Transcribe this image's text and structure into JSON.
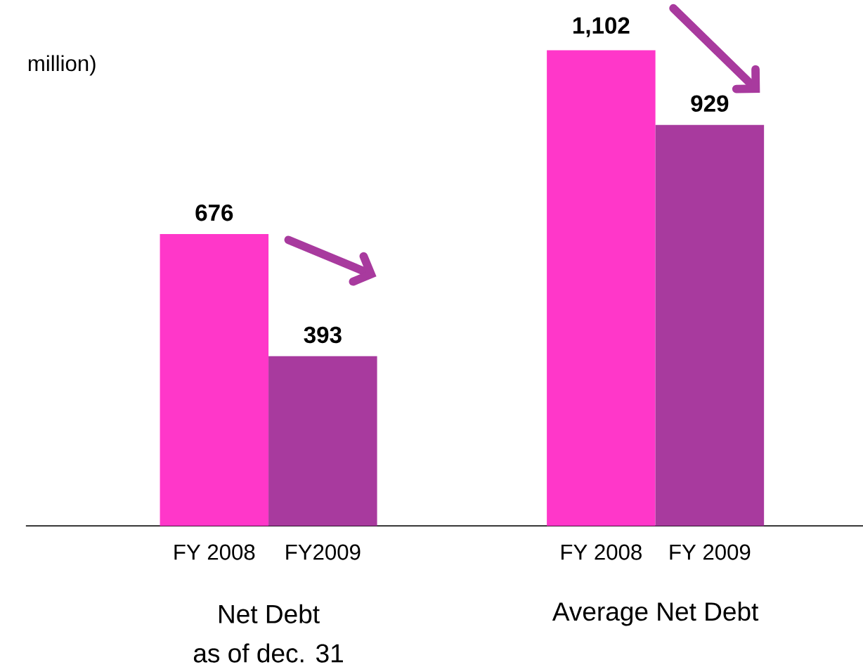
{
  "chart_data": {
    "type": "bar",
    "ylabel": "million)",
    "categories": [
      "FY 2008",
      "FY2009",
      "FY 2008",
      "FY 2009"
    ],
    "values": [
      676,
      393,
      1102,
      929
    ],
    "colors": [
      "#ff37c9",
      "#a83a9e",
      "#ff37c9",
      "#a83a9e"
    ],
    "value_labels": [
      "676",
      "393",
      "1,102",
      "929"
    ],
    "annotations": [
      "Net Debt",
      "as of dec. 31",
      "Average Net Debt"
    ]
  }
}
